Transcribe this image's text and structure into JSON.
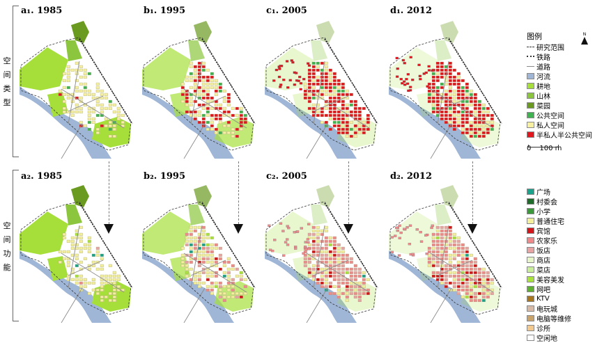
{
  "rows": [
    {
      "label": "空间类型",
      "chars": [
        "空",
        "间",
        "类",
        "型"
      ]
    },
    {
      "label": "空间功能",
      "chars": [
        "空",
        "间",
        "功",
        "能"
      ]
    }
  ],
  "panels": [
    {
      "title": "a₁. 1985",
      "row": 0,
      "col": 0,
      "scheme": "type",
      "stage": 0
    },
    {
      "title": "b₁. 1995",
      "row": 0,
      "col": 1,
      "scheme": "type",
      "stage": 1
    },
    {
      "title": "c₁. 2005",
      "row": 0,
      "col": 2,
      "scheme": "type",
      "stage": 2
    },
    {
      "title": "d₁. 2012",
      "row": 0,
      "col": 3,
      "scheme": "type",
      "stage": 3
    },
    {
      "title": "a₂. 1985",
      "row": 1,
      "col": 0,
      "scheme": "func",
      "stage": 0
    },
    {
      "title": "b₂. 1995",
      "row": 1,
      "col": 1,
      "scheme": "func",
      "stage": 1
    },
    {
      "title": "c₂. 2005",
      "row": 1,
      "col": 2,
      "scheme": "func",
      "stage": 2
    },
    {
      "title": "d₂. 2012",
      "row": 1,
      "col": 3,
      "scheme": "func",
      "stage": 3
    }
  ],
  "legend_type": {
    "title": "图例",
    "lines": [
      {
        "label": "研究范围",
        "style": "dashed"
      },
      {
        "label": "铁路",
        "style": "rail"
      },
      {
        "label": "道路",
        "style": "solid"
      }
    ],
    "items": [
      {
        "label": "河流",
        "color": "#9fb6d6"
      },
      {
        "label": "耕地",
        "color": "#a6df3a"
      },
      {
        "label": "山林",
        "color": "#8cc63f"
      },
      {
        "label": "菜园",
        "color": "#6a9a1f"
      },
      {
        "label": "公共空间",
        "color": "#3fb34f"
      },
      {
        "label": "私人空间",
        "color": "#f7f0a0"
      },
      {
        "label": "半私人半公共空间",
        "color": "#e3161d"
      }
    ],
    "scalebar": {
      "start": "0",
      "end": "100 m"
    },
    "north": "N"
  },
  "legend_func": {
    "items": [
      {
        "label": "广场",
        "color": "#1aa38a"
      },
      {
        "label": "村委会",
        "color": "#1f6b2a"
      },
      {
        "label": "小学",
        "color": "#3a9a3a"
      },
      {
        "label": "普通住宅",
        "color": "#f4ef9a"
      },
      {
        "label": "宾馆",
        "color": "#d4161b"
      },
      {
        "label": "农家乐",
        "color": "#f08a8a"
      },
      {
        "label": "饭店",
        "color": "#e8a3a3"
      },
      {
        "label": "商店",
        "color": "#e6f5c8"
      },
      {
        "label": "菜店",
        "color": "#c9ee9a"
      },
      {
        "label": "美容美发",
        "color": "#a9e23a"
      },
      {
        "label": "网吧",
        "color": "#5fb02f"
      },
      {
        "label": "KTV",
        "color": "#a8761f"
      },
      {
        "label": "电玩城",
        "color": "#d8b9a6"
      },
      {
        "label": "电脑等维修",
        "color": "#c9a36a"
      },
      {
        "label": "诊所",
        "color": "#f3c98e"
      },
      {
        "label": "空闲地",
        "color": "#ffffff"
      }
    ]
  }
}
